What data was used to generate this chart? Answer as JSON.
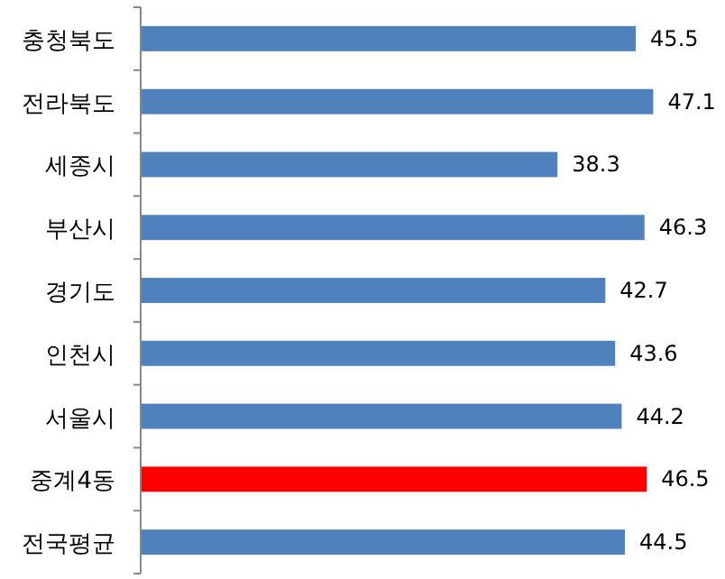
{
  "chart_data": {
    "type": "bar",
    "orientation": "horizontal",
    "categories": [
      "충청북도",
      "전라북도",
      "세종시",
      "부산시",
      "경기도",
      "인천시",
      "서울시",
      "중계4동",
      "전국평균"
    ],
    "values": [
      45.5,
      47.1,
      38.3,
      46.3,
      42.7,
      43.6,
      44.2,
      46.5,
      44.5
    ],
    "colors": [
      "#4f81bd",
      "#4f81bd",
      "#4f81bd",
      "#4f81bd",
      "#4f81bd",
      "#4f81bd",
      "#4f81bd",
      "#ff0000",
      "#4f81bd"
    ],
    "data_labels": true
  }
}
